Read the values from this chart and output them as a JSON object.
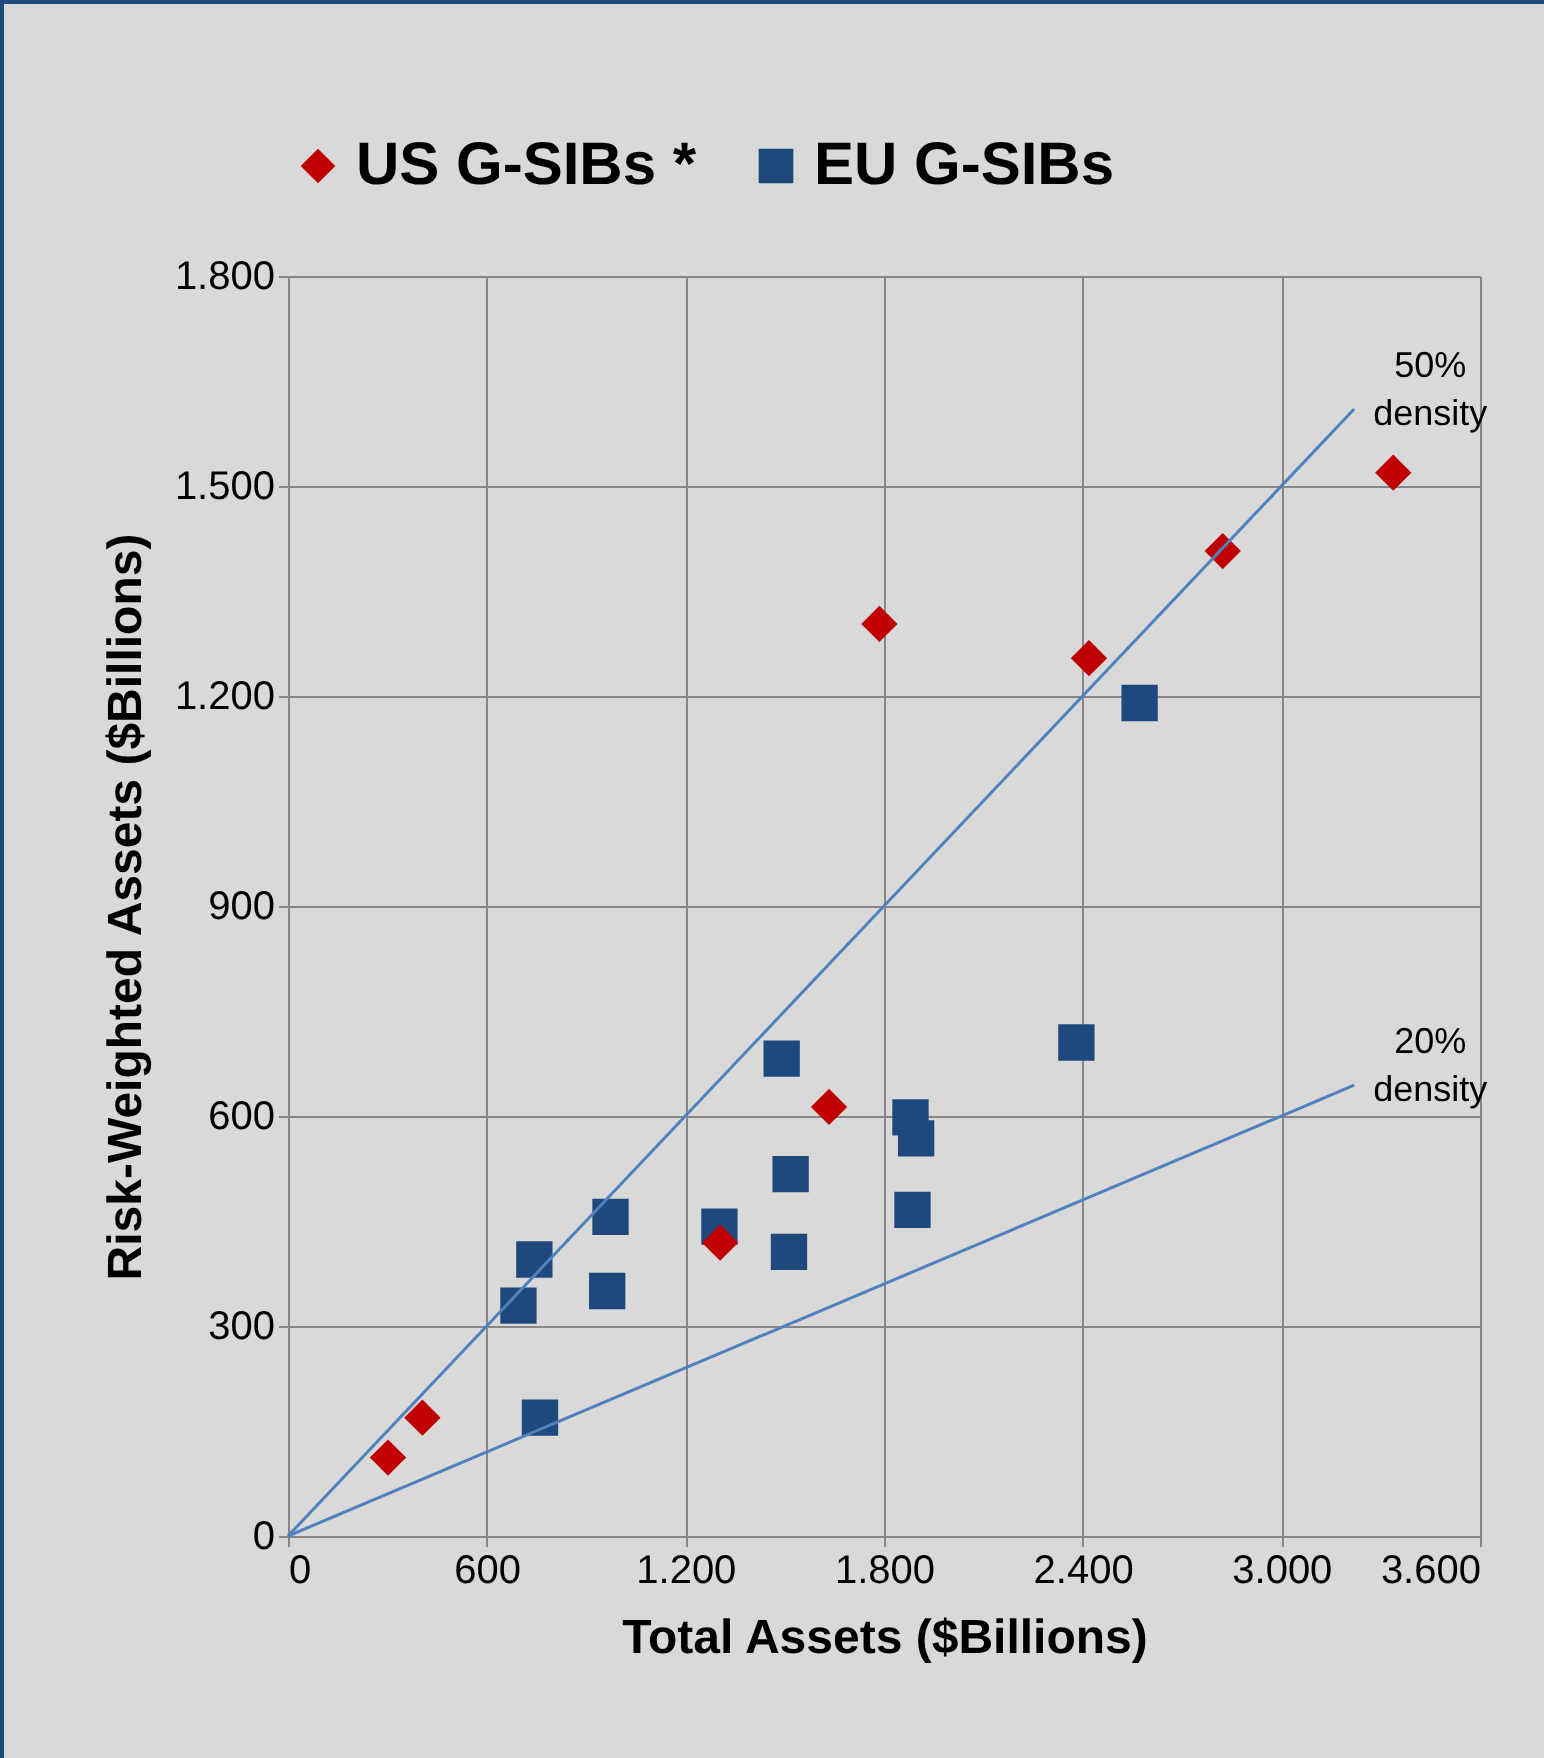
{
  "chart_data": {
    "type": "scatter",
    "xlabel": "Total Assets ($Billions)",
    "ylabel": "Risk-Weighted Assets ($Billions)",
    "xlim": [
      0,
      3600
    ],
    "ylim": [
      0,
      1800
    ],
    "xticks": [
      0,
      {
        "value": 600,
        "label": "600"
      },
      {
        "value": 1200,
        "label": "1.200"
      },
      {
        "value": 1800,
        "label": "1.800"
      },
      {
        "value": 2400,
        "label": "2.400"
      },
      {
        "value": 3000,
        "label": "3.000"
      },
      {
        "value": 3600,
        "label": "3.600"
      }
    ],
    "yticks": [
      0,
      {
        "value": 300,
        "label": "300"
      },
      {
        "value": 600,
        "label": "600"
      },
      {
        "value": 900,
        "label": "900"
      },
      {
        "value": 1200,
        "label": "1.200"
      },
      {
        "value": 1500,
        "label": "1.500"
      },
      {
        "value": 1800,
        "label": "1.800"
      }
    ],
    "grid": true,
    "legend": "top",
    "series": [
      {
        "name": "US G-SIBs *",
        "marker": "diamond",
        "color": "#c00000",
        "x": [
          302,
          406,
          1305,
          1634,
          1786,
          2419,
          2823,
          3338
        ],
        "values": [
          112,
          169,
          419,
          613,
          1303,
          1254,
          1407,
          1519
        ]
      },
      {
        "name": "EU G-SIBs",
        "marker": "square",
        "color": "#1f497d",
        "x": [
          2572,
          2381,
          1491,
          1880,
          1897,
          1518,
          1886,
          1513,
          1303,
          974,
          744,
          964,
          696,
          761
        ],
        "values": [
          1190,
          705,
          682,
          598,
          568,
          517,
          466,
          406,
          442,
          456,
          395,
          350,
          329,
          169
        ]
      },
      {
        "type": "line",
        "color": "#4f81bd",
        "x": [
          0,
          3220
        ],
        "values": [
          0,
          1610
        ]
      },
      {
        "type": "line",
        "color": "#4f81bd",
        "x": [
          0,
          3220
        ],
        "values": [
          0,
          644
        ]
      }
    ],
    "annotations": [
      {
        "text": "50% density",
        "x": 3220,
        "y": 1610
      },
      {
        "text": "20% density",
        "x": 3220,
        "y": 644
      }
    ]
  }
}
